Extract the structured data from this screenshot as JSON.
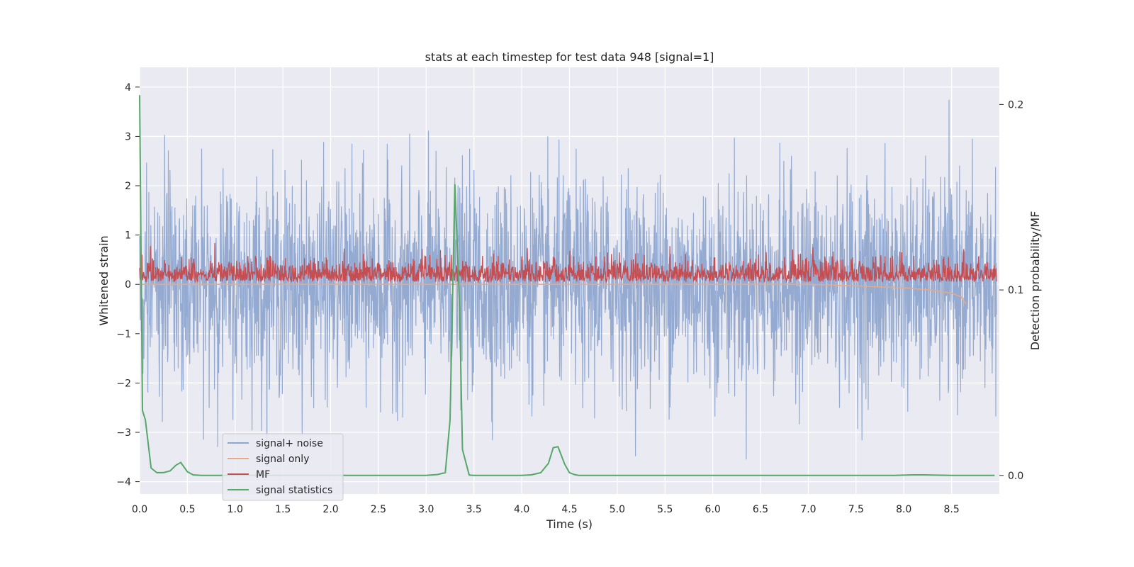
{
  "chart_data": {
    "type": "line",
    "title": "stats at each timestep for test data 948 [signal=1]",
    "xlabel": "Time (s)",
    "ylabel": "Whitened strain",
    "y2label": "Detection probability/MF",
    "xlim": [
      0.0,
      9.0
    ],
    "ylim": [
      -4.25,
      4.4
    ],
    "y2lim": [
      -0.01,
      0.22
    ],
    "xticks": [
      "0.0",
      "0.5",
      "1.0",
      "1.5",
      "2.0",
      "2.5",
      "3.0",
      "3.5",
      "4.0",
      "4.5",
      "5.0",
      "5.5",
      "6.0",
      "6.5",
      "7.0",
      "7.5",
      "8.0",
      "8.5"
    ],
    "yticks": [
      "4",
      "3",
      "2",
      "1",
      "0",
      "−1",
      "−2",
      "−3",
      "−4"
    ],
    "y2ticks": [
      "0.2",
      "0.1",
      "0.0"
    ],
    "grid": true,
    "legend_position": "lower-left",
    "series": [
      {
        "name": "signal+ noise",
        "axis": "left",
        "color": "#8fa6cf",
        "description_values": "whitened strain noise, roughly within [-3.9, 4.0]",
        "envelope_max": 4.0,
        "envelope_min": -3.9
      },
      {
        "name": "signal only",
        "axis": "left",
        "color": "#e6a98a",
        "x": [
          0.0,
          7.0,
          7.5,
          8.0,
          8.3,
          8.5,
          8.6,
          8.65
        ],
        "values": [
          0.0,
          0.0,
          -0.03,
          -0.07,
          -0.12,
          -0.18,
          -0.25,
          -0.4
        ]
      },
      {
        "name": "MF",
        "axis": "left",
        "color": "#c44e52",
        "envelope_max": 0.85,
        "envelope_min": 0.0
      },
      {
        "name": "signal statistics",
        "axis": "right",
        "color": "#55a868",
        "x": [
          0.0,
          0.03,
          0.06,
          0.12,
          0.18,
          0.25,
          0.32,
          0.38,
          0.43,
          0.5,
          0.56,
          0.65,
          1.0,
          2.0,
          3.0,
          3.12,
          3.2,
          3.25,
          3.3,
          3.35,
          3.38,
          3.45,
          3.5,
          4.0,
          4.1,
          4.2,
          4.28,
          4.33,
          4.38,
          4.45,
          4.5,
          4.55,
          4.6,
          5.0,
          6.0,
          7.0,
          7.5,
          7.9,
          8.1,
          8.2,
          8.5,
          8.8,
          8.95
        ],
        "values": [
          0.205,
          0.035,
          0.03,
          0.004,
          0.0015,
          0.0015,
          0.0025,
          0.0055,
          0.007,
          0.002,
          0.0003,
          0.0,
          0.0,
          0.0,
          0.0,
          0.0005,
          0.0015,
          0.03,
          0.157,
          0.09,
          0.014,
          0.0002,
          0.0,
          0.0,
          0.0003,
          0.0015,
          0.0065,
          0.015,
          0.0155,
          0.006,
          0.0015,
          0.0005,
          0.0,
          0.0,
          0.0,
          0.0,
          0.0,
          0.0,
          0.0003,
          0.0003,
          0.0,
          0.0,
          0.0
        ]
      }
    ]
  }
}
